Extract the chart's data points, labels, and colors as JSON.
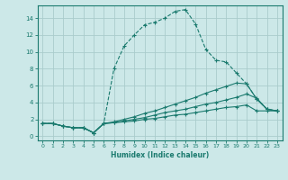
{
  "xlabel": "Humidex (Indice chaleur)",
  "bg_color": "#cce8e8",
  "grid_color": "#aacccc",
  "line_color": "#1a7a6e",
  "xlim": [
    -0.5,
    23.5
  ],
  "ylim": [
    -0.5,
    15.5
  ],
  "xticks": [
    0,
    1,
    2,
    3,
    4,
    5,
    6,
    7,
    8,
    9,
    10,
    11,
    12,
    13,
    14,
    15,
    16,
    17,
    18,
    19,
    20,
    21,
    22,
    23
  ],
  "yticks": [
    0,
    2,
    4,
    6,
    8,
    10,
    12,
    14
  ],
  "series": [
    {
      "x": [
        0,
        1,
        2,
        3,
        4,
        5,
        6,
        7,
        8,
        9,
        10,
        11,
        12,
        13,
        14,
        15,
        16,
        17,
        18,
        19,
        20,
        21,
        22,
        23
      ],
      "y": [
        1.5,
        1.5,
        1.2,
        1.0,
        1.0,
        0.4,
        1.5,
        8.0,
        10.7,
        12.0,
        13.2,
        13.5,
        14.0,
        14.8,
        15.0,
        13.3,
        10.3,
        9.0,
        8.8,
        7.5,
        6.2,
        4.4,
        3.2,
        3.0
      ],
      "linestyle": "dashed"
    },
    {
      "x": [
        0,
        1,
        2,
        3,
        4,
        5,
        6,
        7,
        8,
        9,
        10,
        11,
        12,
        13,
        14,
        15,
        16,
        17,
        18,
        19,
        20,
        21,
        22,
        23
      ],
      "y": [
        1.5,
        1.5,
        1.2,
        1.0,
        1.0,
        0.4,
        1.5,
        1.6,
        1.7,
        1.8,
        2.0,
        2.1,
        2.3,
        2.5,
        2.6,
        2.8,
        3.0,
        3.2,
        3.4,
        3.5,
        3.7,
        3.0,
        3.0,
        3.0
      ],
      "linestyle": "solid"
    },
    {
      "x": [
        0,
        1,
        2,
        3,
        4,
        5,
        6,
        7,
        8,
        9,
        10,
        11,
        12,
        13,
        14,
        15,
        16,
        17,
        18,
        19,
        20,
        21,
        22,
        23
      ],
      "y": [
        1.5,
        1.5,
        1.2,
        1.0,
        1.0,
        0.4,
        1.5,
        1.6,
        1.8,
        2.0,
        2.2,
        2.5,
        2.8,
        3.0,
        3.2,
        3.5,
        3.8,
        4.0,
        4.3,
        4.6,
        5.0,
        4.5,
        3.2,
        3.0
      ],
      "linestyle": "solid"
    },
    {
      "x": [
        0,
        1,
        2,
        3,
        4,
        5,
        6,
        7,
        8,
        9,
        10,
        11,
        12,
        13,
        14,
        15,
        16,
        17,
        18,
        19,
        20,
        21,
        22,
        23
      ],
      "y": [
        1.5,
        1.5,
        1.2,
        1.0,
        1.0,
        0.4,
        1.5,
        1.7,
        2.0,
        2.3,
        2.7,
        3.0,
        3.4,
        3.8,
        4.2,
        4.6,
        5.1,
        5.5,
        5.9,
        6.3,
        6.2,
        4.4,
        3.2,
        3.0
      ],
      "linestyle": "solid"
    }
  ]
}
